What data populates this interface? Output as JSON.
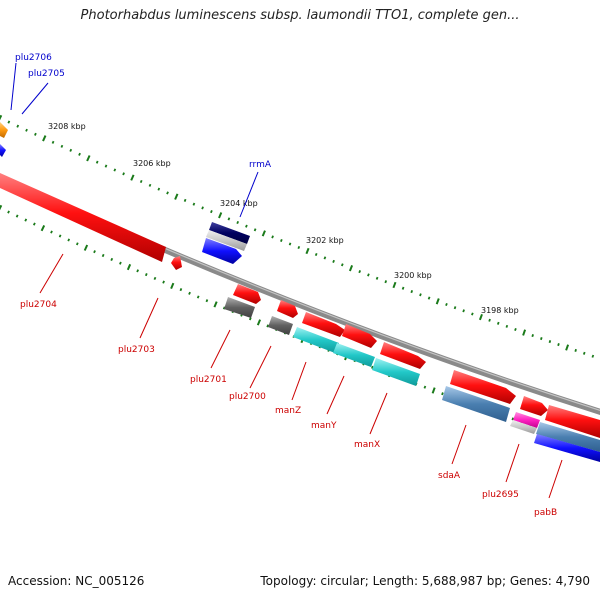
{
  "title": "Photorhabdus luminescens subsp. laumondii TTO1, complete gen...",
  "footer": {
    "accession": "Accession: NC_005126",
    "info": "Topology: circular; Length: 5,688,987 bp; Genes: 4,790"
  },
  "colors": {
    "backbone": "#8a8a8a",
    "tick": "#1a7a1a",
    "forward_label": "#0000cc",
    "reverse_label": "#cc0000"
  },
  "kbp_labels": [
    "3208 kbp",
    "3206 kbp",
    "3204 kbp",
    "3202 kbp",
    "3200 kbp",
    "3198 kbp"
  ],
  "genes": [
    {
      "name": "plu2706",
      "strand": "forward"
    },
    {
      "name": "plu2705",
      "strand": "forward"
    },
    {
      "name": "rrmA",
      "strand": "forward"
    },
    {
      "name": "plu2704",
      "strand": "reverse"
    },
    {
      "name": "plu2703",
      "strand": "reverse"
    },
    {
      "name": "plu2701",
      "strand": "reverse"
    },
    {
      "name": "plu2700",
      "strand": "reverse"
    },
    {
      "name": "manZ",
      "strand": "reverse"
    },
    {
      "name": "manY",
      "strand": "reverse"
    },
    {
      "name": "manX",
      "strand": "reverse"
    },
    {
      "name": "sdaA",
      "strand": "reverse"
    },
    {
      "name": "plu2695",
      "strand": "reverse"
    },
    {
      "name": "pabB",
      "strand": "reverse"
    }
  ]
}
